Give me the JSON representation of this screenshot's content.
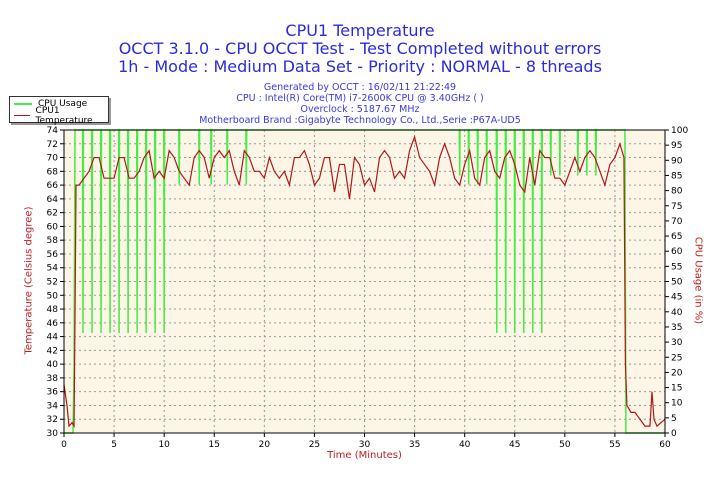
{
  "header": {
    "title": "CPU1 Temperature",
    "line2": "OCCT 3.1.0 - CPU OCCT Test - Test Completed without errors",
    "line3": "1h - Mode : Medium Data Set - Priority : NORMAL - 8 threads",
    "generated": "Generated by OCCT : 16/02/11 21:22:49",
    "cpu": "CPU : Intel(R) Core(TM) i7-2600K CPU @ 3.40GHz (  )",
    "overclock": "Overclock : 5187.67 MHz",
    "motherboard": "Motherboard Brand :Gigabyte Technology Co., Ltd.,Serie :P67A-UD5"
  },
  "colors": {
    "title": "#2b2bd8",
    "temp": "#b01818",
    "usage": "#44ee44",
    "plot_bg": "#fdf6e6",
    "axis_label": "#c02020"
  },
  "chart_data": {
    "type": "line",
    "xlabel": "Time (Minutes)",
    "ylabel_left": "Temperature (Celsius degree)",
    "ylabel_right": "CPU Usage (in %)",
    "xlim": [
      0,
      60
    ],
    "ylim_left": [
      30,
      74
    ],
    "ylim_right": [
      0,
      100
    ],
    "x_ticks": [
      0,
      5,
      10,
      15,
      20,
      25,
      30,
      35,
      40,
      45,
      50,
      55,
      60
    ],
    "y_ticks_left": [
      30,
      32,
      34,
      36,
      38,
      40,
      42,
      44,
      46,
      48,
      50,
      52,
      54,
      56,
      58,
      60,
      62,
      64,
      66,
      68,
      70,
      72,
      74
    ],
    "y_ticks_right": [
      0,
      5,
      10,
      15,
      20,
      25,
      30,
      35,
      40,
      45,
      50,
      55,
      60,
      65,
      70,
      75,
      80,
      85,
      90,
      95,
      100
    ],
    "grid": true,
    "legend": "top-left",
    "series": [
      {
        "name": "CPU Usage",
        "axis": "right",
        "points": [
          [
            0,
            0
          ],
          [
            0.9,
            0
          ],
          [
            1.0,
            20
          ],
          [
            1.1,
            100
          ],
          [
            56.0,
            100
          ],
          [
            56.05,
            45
          ],
          [
            56.1,
            0
          ],
          [
            60,
            0
          ]
        ],
        "dips": [
          [
            1.9,
            33
          ],
          [
            2.8,
            33
          ],
          [
            3.7,
            33
          ],
          [
            4.6,
            33
          ],
          [
            5.5,
            33
          ],
          [
            6.4,
            33
          ],
          [
            7.3,
            33
          ],
          [
            8.2,
            33
          ],
          [
            9.1,
            33
          ],
          [
            10.0,
            33
          ],
          [
            11.5,
            82
          ],
          [
            13.5,
            82
          ],
          [
            14.7,
            82
          ],
          [
            16.3,
            82
          ],
          [
            18.2,
            82
          ],
          [
            39.5,
            85
          ],
          [
            40.4,
            82
          ],
          [
            41.3,
            82
          ],
          [
            42.2,
            82
          ],
          [
            43.2,
            33
          ],
          [
            44.1,
            33
          ],
          [
            45.0,
            33
          ],
          [
            45.9,
            33
          ],
          [
            46.8,
            33
          ],
          [
            47.7,
            33
          ],
          [
            48.6,
            85
          ],
          [
            49.5,
            85
          ],
          [
            51.3,
            85
          ],
          [
            52.2,
            85
          ],
          [
            53.1,
            85
          ]
        ]
      },
      {
        "name": "CPU1 Temperature",
        "axis": "left",
        "points": [
          [
            0,
            37
          ],
          [
            0.3,
            34
          ],
          [
            0.5,
            31
          ],
          [
            0.8,
            31.5
          ],
          [
            1.0,
            31
          ],
          [
            1.1,
            47
          ],
          [
            1.2,
            66
          ],
          [
            1.5,
            66
          ],
          [
            2,
            67
          ],
          [
            2.5,
            68
          ],
          [
            3,
            70
          ],
          [
            3.5,
            70
          ],
          [
            4,
            67
          ],
          [
            4.5,
            67
          ],
          [
            5,
            67
          ],
          [
            5.5,
            70
          ],
          [
            6,
            70
          ],
          [
            6.5,
            67
          ],
          [
            7,
            67
          ],
          [
            7.5,
            68
          ],
          [
            8,
            70
          ],
          [
            8.5,
            71
          ],
          [
            9,
            67
          ],
          [
            9.5,
            68
          ],
          [
            10,
            67
          ],
          [
            10.5,
            71
          ],
          [
            11,
            70
          ],
          [
            11.5,
            68
          ],
          [
            12,
            67
          ],
          [
            12.5,
            66
          ],
          [
            13,
            70
          ],
          [
            13.5,
            71
          ],
          [
            14,
            70
          ],
          [
            14.5,
            67
          ],
          [
            15,
            70
          ],
          [
            15.5,
            71
          ],
          [
            16,
            70
          ],
          [
            16.5,
            71
          ],
          [
            17,
            68
          ],
          [
            17.5,
            66
          ],
          [
            18,
            71
          ],
          [
            18.5,
            70
          ],
          [
            19,
            68
          ],
          [
            19.5,
            68
          ],
          [
            20,
            67
          ],
          [
            20.5,
            70
          ],
          [
            21,
            68
          ],
          [
            21.5,
            67
          ],
          [
            22,
            68
          ],
          [
            22.5,
            66
          ],
          [
            23,
            70
          ],
          [
            23.5,
            70
          ],
          [
            24,
            71
          ],
          [
            24.5,
            69
          ],
          [
            25,
            66
          ],
          [
            25.5,
            67
          ],
          [
            26,
            70
          ],
          [
            26.5,
            70
          ],
          [
            27,
            65
          ],
          [
            27.5,
            69
          ],
          [
            28,
            69
          ],
          [
            28.5,
            64
          ],
          [
            29,
            70
          ],
          [
            29.5,
            69
          ],
          [
            30,
            66
          ],
          [
            30.5,
            67
          ],
          [
            31,
            65
          ],
          [
            31.5,
            70
          ],
          [
            32,
            71
          ],
          [
            32.5,
            70
          ],
          [
            33,
            67
          ],
          [
            33.5,
            68
          ],
          [
            34,
            67
          ],
          [
            34.5,
            71
          ],
          [
            35,
            73
          ],
          [
            35.5,
            70
          ],
          [
            36,
            69
          ],
          [
            36.5,
            68
          ],
          [
            37,
            66
          ],
          [
            37.5,
            70
          ],
          [
            38,
            72
          ],
          [
            38.5,
            70
          ],
          [
            39,
            67
          ],
          [
            39.5,
            66
          ],
          [
            40,
            69
          ],
          [
            40.5,
            71
          ],
          [
            41,
            67
          ],
          [
            41.5,
            66
          ],
          [
            42,
            70
          ],
          [
            42.5,
            71
          ],
          [
            43,
            68
          ],
          [
            43.5,
            67
          ],
          [
            44,
            70
          ],
          [
            44.5,
            71
          ],
          [
            45,
            69
          ],
          [
            45.5,
            66
          ],
          [
            46,
            65
          ],
          [
            46.5,
            70
          ],
          [
            47,
            66
          ],
          [
            47.5,
            71
          ],
          [
            48,
            70
          ],
          [
            48.5,
            70
          ],
          [
            49,
            67
          ],
          [
            49.5,
            67
          ],
          [
            50,
            66
          ],
          [
            50.5,
            68
          ],
          [
            51,
            70
          ],
          [
            51.5,
            68
          ],
          [
            52,
            70
          ],
          [
            52.5,
            71
          ],
          [
            53,
            70
          ],
          [
            53.5,
            68
          ],
          [
            54,
            66
          ],
          [
            54.5,
            69
          ],
          [
            55,
            70
          ],
          [
            55.5,
            72
          ],
          [
            55.9,
            70
          ],
          [
            56.05,
            40
          ],
          [
            56.2,
            34
          ],
          [
            56.6,
            33
          ],
          [
            57,
            33
          ],
          [
            57.5,
            32
          ],
          [
            58,
            31
          ],
          [
            58.5,
            31
          ],
          [
            58.7,
            36
          ],
          [
            58.9,
            32
          ],
          [
            59.2,
            31
          ],
          [
            60,
            32
          ]
        ]
      }
    ]
  }
}
